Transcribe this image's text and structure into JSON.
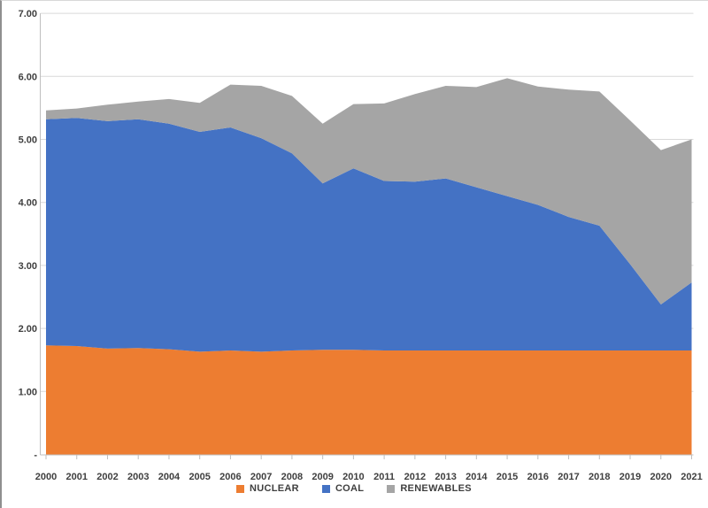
{
  "chart_data": {
    "type": "area",
    "stacked": true,
    "title": "",
    "xlabel": "",
    "ylabel": "",
    "x": [
      "2000",
      "2001",
      "2002",
      "2003",
      "2004",
      "2005",
      "2006",
      "2007",
      "2008",
      "2009",
      "2010",
      "2011",
      "2012",
      "2013",
      "2014",
      "2015",
      "2016",
      "2017",
      "2018",
      "2019",
      "2020",
      "2021"
    ],
    "series": [
      {
        "name": "NUCLEAR",
        "color": "#ED7D31",
        "values": [
          1.73,
          1.72,
          1.68,
          1.69,
          1.67,
          1.63,
          1.65,
          1.63,
          1.65,
          1.66,
          1.66,
          1.65,
          1.65,
          1.65,
          1.65,
          1.65,
          1.65,
          1.65,
          1.65,
          1.65,
          1.65,
          1.65
        ]
      },
      {
        "name": "COAL",
        "color": "#4472C4",
        "values": [
          3.59,
          3.62,
          3.61,
          3.63,
          3.58,
          3.49,
          3.54,
          3.39,
          3.13,
          2.64,
          2.88,
          2.69,
          2.68,
          2.73,
          2.59,
          2.45,
          2.31,
          2.12,
          1.98,
          1.37,
          0.73,
          1.08
        ]
      },
      {
        "name": "RENEWABLES",
        "color": "#A5A5A5",
        "values": [
          0.14,
          0.15,
          0.26,
          0.28,
          0.39,
          0.46,
          0.68,
          0.83,
          0.91,
          0.95,
          1.02,
          1.23,
          1.39,
          1.47,
          1.59,
          1.87,
          1.88,
          2.02,
          2.13,
          2.28,
          2.45,
          2.27
        ]
      }
    ],
    "ylim": [
      0,
      7
    ],
    "ytick_step": 1,
    "ytick_labels": [
      "-",
      "1.00",
      "2.00",
      "3.00",
      "4.00",
      "5.00",
      "6.00",
      "7.00"
    ],
    "gridlines": "horizontal",
    "legend_position": "bottom",
    "style": {
      "gridline_color": "#D9D9D9",
      "axis_color": "#BFBFBF",
      "label_color": "#3F3F3F"
    }
  }
}
